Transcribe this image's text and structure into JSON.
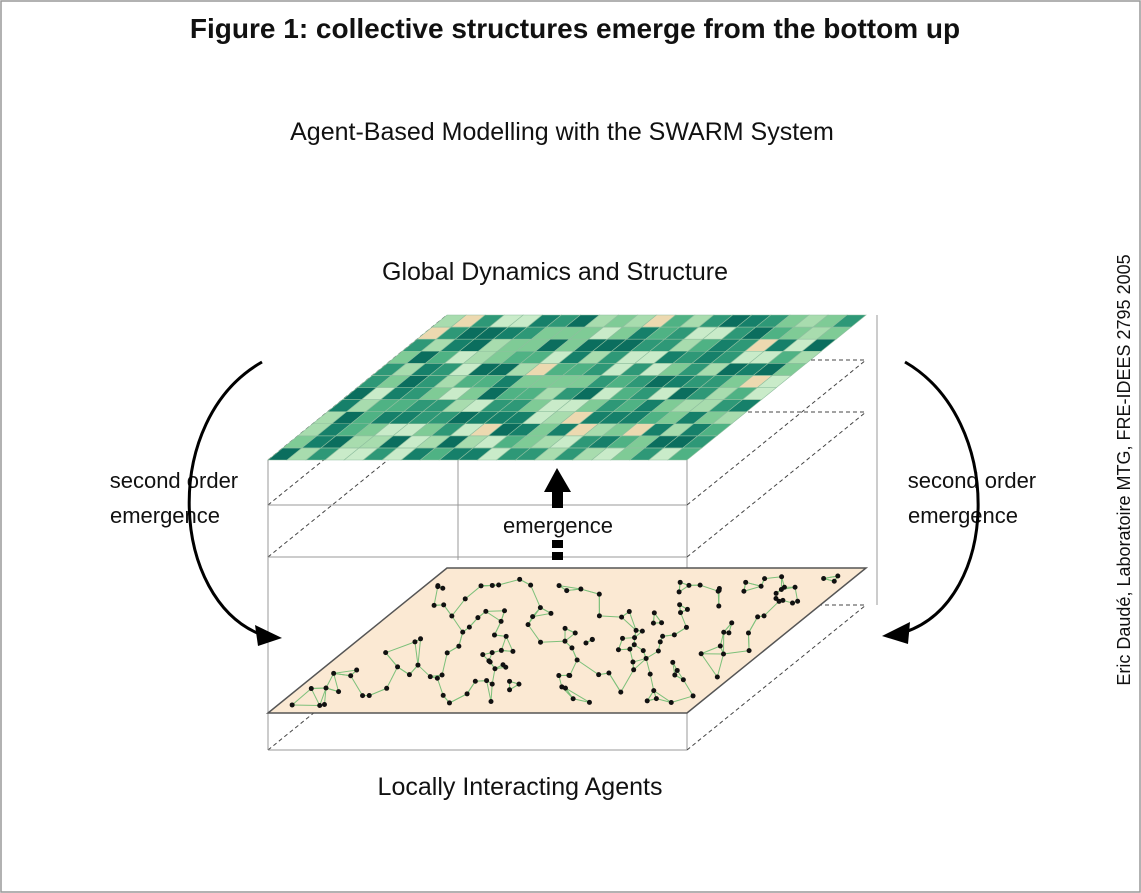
{
  "title": "Figure 1: collective structures emerge from the bottom up",
  "subtitle": "Agent-Based Modelling with the SWARM System",
  "top_label": "Global Dynamics and Structure",
  "bottom_label": "Locally Interacting Agents",
  "center_label": "emergence",
  "left_label": [
    "second order",
    "emergence"
  ],
  "right_label": [
    "second order",
    "emergence"
  ],
  "credit": "Eric Daudé, Laboratoire MTG, FRE-IDEES 2795 2005"
}
